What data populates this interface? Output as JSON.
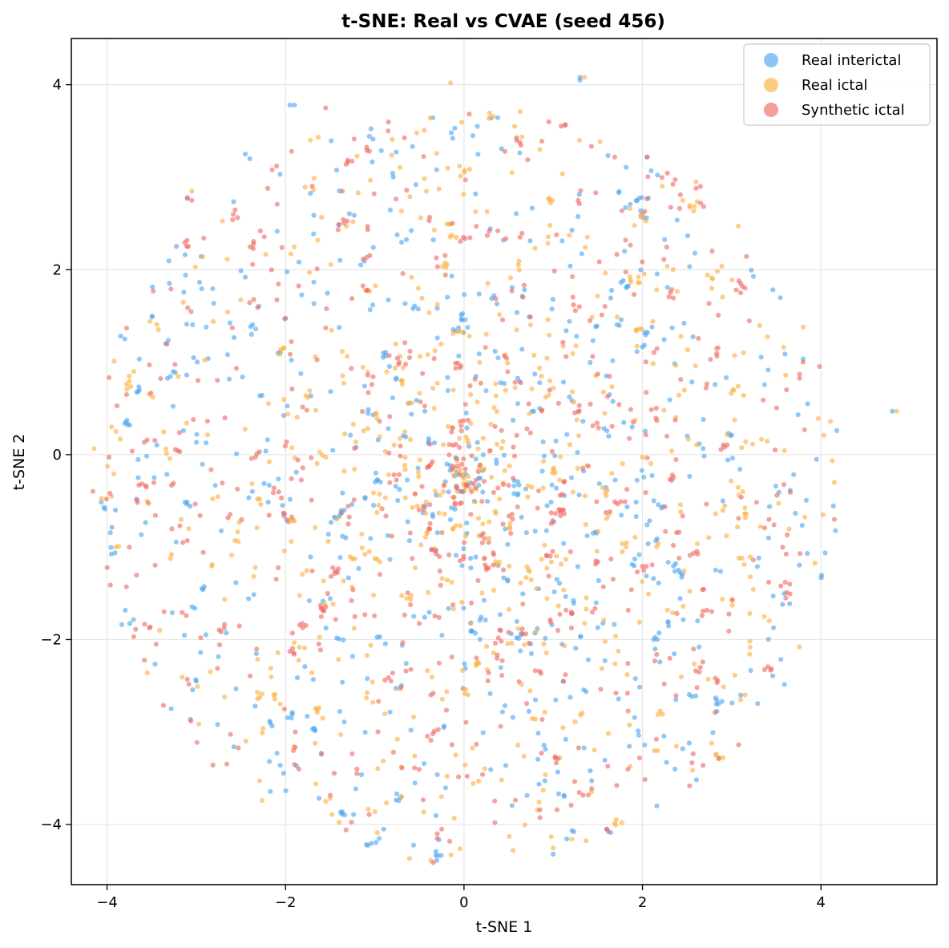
{
  "chart_data": {
    "type": "scatter",
    "title": "t-SNE: Real vs CVAE (seed 456)",
    "xlabel": "t-SNE 1",
    "ylabel": "t-SNE 2",
    "xlim": [
      -4.4,
      5.3
    ],
    "ylim": [
      -4.65,
      4.5
    ],
    "xticks": [
      -4,
      -2,
      0,
      2,
      4
    ],
    "yticks": [
      -4,
      -2,
      0,
      2,
      4
    ],
    "grid": true,
    "legend_position": "upper-right",
    "distribution": "radially decreasing density centered near (0, -0.3), radius ~4.2",
    "series": [
      {
        "name": "Real interictal",
        "color": "#4da6f0",
        "count": 620,
        "highlights": [
          [
            1.3,
            4.08
          ],
          [
            1.3,
            4.05
          ],
          [
            0.15,
            3.55
          ],
          [
            0.1,
            3.45
          ],
          [
            -2.45,
            3.25
          ],
          [
            -2.4,
            3.2
          ],
          [
            -1.95,
            3.78
          ],
          [
            -1.9,
            3.78
          ],
          [
            4.8,
            0.47
          ],
          [
            3.1,
            -2.6
          ],
          [
            -3.0,
            -2.45
          ],
          [
            1.6,
            -4.05
          ],
          [
            -0.9,
            -4.05
          ],
          [
            -0.95,
            -4.15
          ],
          [
            2.45,
            -3.18
          ],
          [
            -0.55,
            -3.55
          ],
          [
            -3.1,
            2.77
          ],
          [
            -3.8,
            1.25
          ],
          [
            3.85,
            0.55
          ],
          [
            3.95,
            -0.05
          ],
          [
            -3.65,
            -0.25
          ],
          [
            2.9,
            -0.5
          ],
          [
            1.8,
            2.2
          ]
        ]
      },
      {
        "name": "Real ictal",
        "color": "#fbb040",
        "count": 600,
        "highlights": [
          [
            4.85,
            0.47
          ],
          [
            3.1,
            -2.65
          ],
          [
            3.15,
            -2.6
          ],
          [
            1.35,
            4.08
          ],
          [
            -3.95,
            0.3
          ],
          [
            -3.9,
            0.25
          ],
          [
            -3.95,
            -0.45
          ],
          [
            -3.9,
            -1.0
          ],
          [
            -1.55,
            -3.75
          ],
          [
            -1.5,
            -3.72
          ],
          [
            0.55,
            -4.28
          ],
          [
            -0.15,
            4.02
          ],
          [
            -3.05,
            2.85
          ],
          [
            3.8,
            1.38
          ],
          [
            4.15,
            -0.3
          ],
          [
            -3.7,
            0.9
          ],
          [
            -3.75,
            0.85
          ],
          [
            2.6,
            2.95
          ],
          [
            0.85,
            3.3
          ]
        ]
      },
      {
        "name": "Synthetic ictal",
        "color": "#ef6b63",
        "count": 590,
        "highlights": [
          [
            3.1,
            1.85
          ],
          [
            3.12,
            1.82
          ],
          [
            3.08,
            1.88
          ],
          [
            3.15,
            1.8
          ],
          [
            3.05,
            1.78
          ],
          [
            3.1,
            1.75
          ],
          [
            2.65,
            2.9
          ],
          [
            2.6,
            2.88
          ],
          [
            -1.2,
            -3.4
          ],
          [
            -1.2,
            -3.45
          ],
          [
            -0.3,
            -4.1
          ],
          [
            -0.3,
            -4.15
          ],
          [
            -0.25,
            -4.05
          ],
          [
            3.6,
            -1.38
          ],
          [
            3.65,
            -1.4
          ],
          [
            3.55,
            -1.42
          ],
          [
            -1.85,
            -3.4
          ],
          [
            -1.9,
            -3.35
          ],
          [
            -3.1,
            2.78
          ],
          [
            -3.05,
            2.75
          ],
          [
            -3.15,
            -0.95
          ],
          [
            -3.1,
            -0.93
          ],
          [
            -3.75,
            -1.0
          ],
          [
            -2.1,
            3.12
          ],
          [
            -2.15,
            3.08
          ],
          [
            1.6,
            -4.05
          ],
          [
            -1.55,
            3.75
          ],
          [
            -0.85,
            3.5
          ],
          [
            4.15,
            -0.7
          ],
          [
            3.8,
            1.0
          ],
          [
            -3.45,
            -2.05
          ],
          [
            0.95,
            3.6
          ]
        ]
      }
    ]
  }
}
